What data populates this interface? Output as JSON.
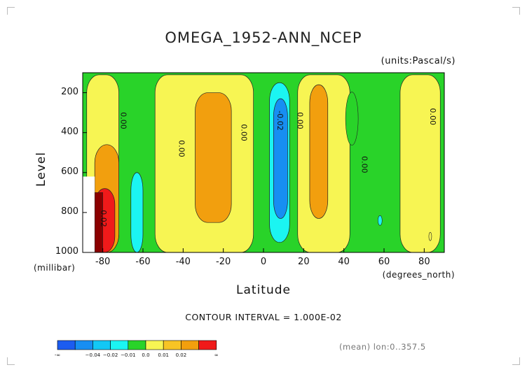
{
  "title": "OMEGA_1952-ANN_NCEP",
  "units_label": "(units:Pascal/s)",
  "contour_interval": "CONTOUR INTERVAL = 1.000E-02",
  "mean_note": "(mean) lon:0..357.5",
  "chart_data": {
    "type": "contour",
    "title": "OMEGA_1952-ANN_NCEP",
    "units": "(units:Pascal/s)",
    "xlabel": "Latitude",
    "x_units": "(degrees_north)",
    "ylabel": "Level",
    "y_units": "(millibar)",
    "xlim": [
      -90,
      90
    ],
    "ylim": [
      1000,
      100
    ],
    "x_ticks": [
      -80,
      -60,
      -40,
      -20,
      0,
      20,
      40,
      60,
      80
    ],
    "x_tick_labels": [
      "-80",
      "-60",
      "-40",
      "-20",
      "0",
      "20",
      "40",
      "60",
      "80"
    ],
    "y_ticks": [
      200,
      400,
      600,
      800,
      1000
    ],
    "y_tick_labels": [
      "200",
      "400",
      "600",
      "800",
      "1000"
    ],
    "contour_labels": [
      {
        "text": "0.00",
        "lat": -71,
        "lev": 340
      },
      {
        "text": "0.00",
        "lat": -42,
        "lev": 480
      },
      {
        "text": "0.00",
        "lat": -11,
        "lev": 400
      },
      {
        "text": "-0.02",
        "lat": 7,
        "lev": 340
      },
      {
        "text": "0.00",
        "lat": 17,
        "lev": 340
      },
      {
        "text": "0.00",
        "lat": 49,
        "lev": 560
      },
      {
        "text": "0.00",
        "lat": 83,
        "lev": 320
      },
      {
        "text": "0.02",
        "lat": -81,
        "lev": 830
      }
    ],
    "regions": [
      {
        "level": "0.0-0.01",
        "lat_range": [
          -88,
          -72
        ],
        "lev_range": [
          110,
          1000
        ]
      },
      {
        "level": "0.0-0.01",
        "lat_range": [
          -54,
          -5
        ],
        "lev_range": [
          110,
          1000
        ]
      },
      {
        "level": "0.01-0.02",
        "lat_range": [
          -34,
          -16
        ],
        "lev_range": [
          200,
          850
        ]
      },
      {
        "level": "-0.01-0.0",
        "lat_range": [
          3,
          13
        ],
        "lev_range": [
          150,
          950
        ]
      },
      {
        "level": "-0.02--0.01",
        "lat_range": [
          5,
          12
        ],
        "lev_range": [
          230,
          830
        ]
      },
      {
        "level": "0.0-0.01",
        "lat_range": [
          17,
          43
        ],
        "lev_range": [
          110,
          1000
        ]
      },
      {
        "level": "0.01-0.02",
        "lat_range": [
          23,
          32
        ],
        "lev_range": [
          160,
          830
        ]
      },
      {
        "level": "0.0-0.01",
        "lat_range": [
          68,
          88
        ],
        "lev_range": [
          110,
          1000
        ]
      },
      {
        "level": "-0.01-0.0",
        "lat_range": [
          -66,
          -60
        ],
        "lev_range": [
          600,
          1000
        ]
      },
      {
        "level": "0.01-0.02",
        "lat_range": [
          -84,
          -72
        ],
        "lev_range": [
          460,
          1000
        ]
      },
      {
        "level": "0.02-inf",
        "lat_range": [
          -84,
          -74
        ],
        "lev_range": [
          680,
          1000
        ]
      }
    ],
    "colorbar": {
      "colors": [
        "#1c5cf0",
        "#178ef2",
        "#13c8f5",
        "#1bf5f2",
        "#29d329",
        "#f7f553",
        "#f7c425",
        "#f29f0e",
        "#f01a1a"
      ],
      "labels": [
        "-∞",
        "−0.04",
        "−0.02",
        "−0.01",
        "0.0",
        "0.01",
        "0.02",
        "∞"
      ]
    }
  }
}
